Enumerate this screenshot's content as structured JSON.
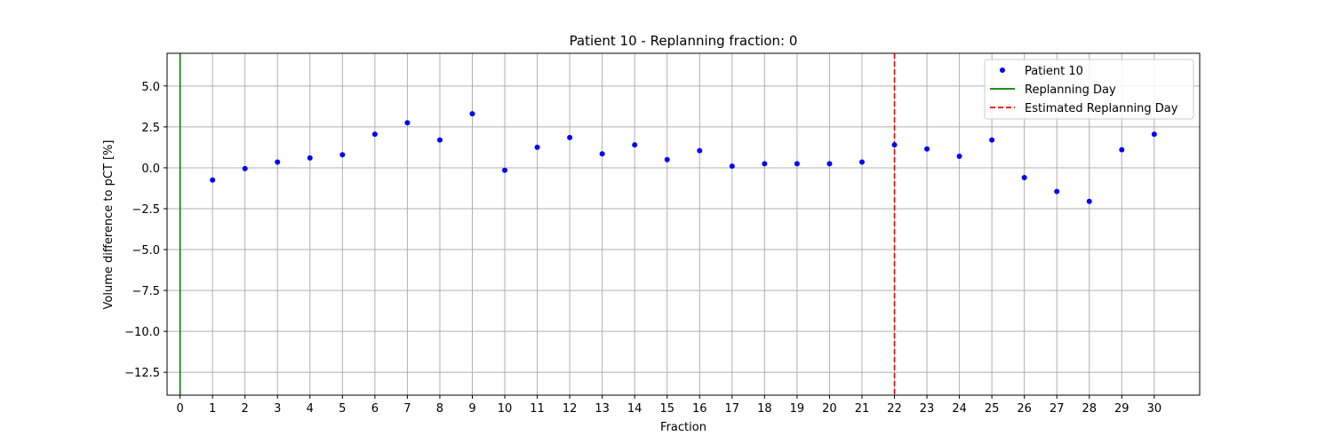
{
  "chart_data": {
    "type": "scatter",
    "title": "Patient 10 - Replanning fraction: 0",
    "xlabel": "Fraction",
    "ylabel": "Volume difference to pCT [%]",
    "xlim": [
      -0.4,
      31.4
    ],
    "ylim": [
      -13.9,
      7.0
    ],
    "x_ticks": [
      0,
      1,
      2,
      3,
      4,
      5,
      6,
      7,
      8,
      9,
      10,
      11,
      12,
      13,
      14,
      15,
      16,
      17,
      18,
      19,
      20,
      21,
      22,
      23,
      24,
      25,
      26,
      27,
      28,
      29,
      30
    ],
    "y_ticks": [
      5.0,
      2.5,
      0.0,
      -2.5,
      -5.0,
      -7.5,
      -10.0,
      -12.5
    ],
    "y_tick_labels": [
      "5.0",
      "2.5",
      "0.0",
      "−2.5",
      "−5.0",
      "−7.5",
      "−10.0",
      "−12.5"
    ],
    "grid": true,
    "legend_position": "top-right",
    "series": [
      {
        "name": "Patient 10",
        "kind": "points",
        "color": "#0000ff",
        "x": [
          1,
          2,
          3,
          4,
          5,
          6,
          7,
          8,
          9,
          10,
          11,
          12,
          13,
          14,
          15,
          16,
          17,
          18,
          19,
          20,
          21,
          22,
          23,
          24,
          25,
          26,
          27,
          28,
          29,
          30
        ],
        "y": [
          -0.75,
          -0.05,
          0.35,
          0.6,
          0.8,
          2.05,
          2.75,
          1.7,
          3.3,
          -0.15,
          1.25,
          1.85,
          0.85,
          1.4,
          0.5,
          1.05,
          0.1,
          0.25,
          0.25,
          0.25,
          0.35,
          1.4,
          1.15,
          0.7,
          1.7,
          -0.6,
          -1.45,
          -2.05,
          1.1,
          2.05
        ]
      },
      {
        "name": "Replanning Day",
        "kind": "vline",
        "color": "#008000",
        "x": 0,
        "dashed": false
      },
      {
        "name": "Estimated Replanning Day",
        "kind": "vline",
        "color": "#ff0000",
        "x": 22,
        "dashed": true
      }
    ]
  }
}
